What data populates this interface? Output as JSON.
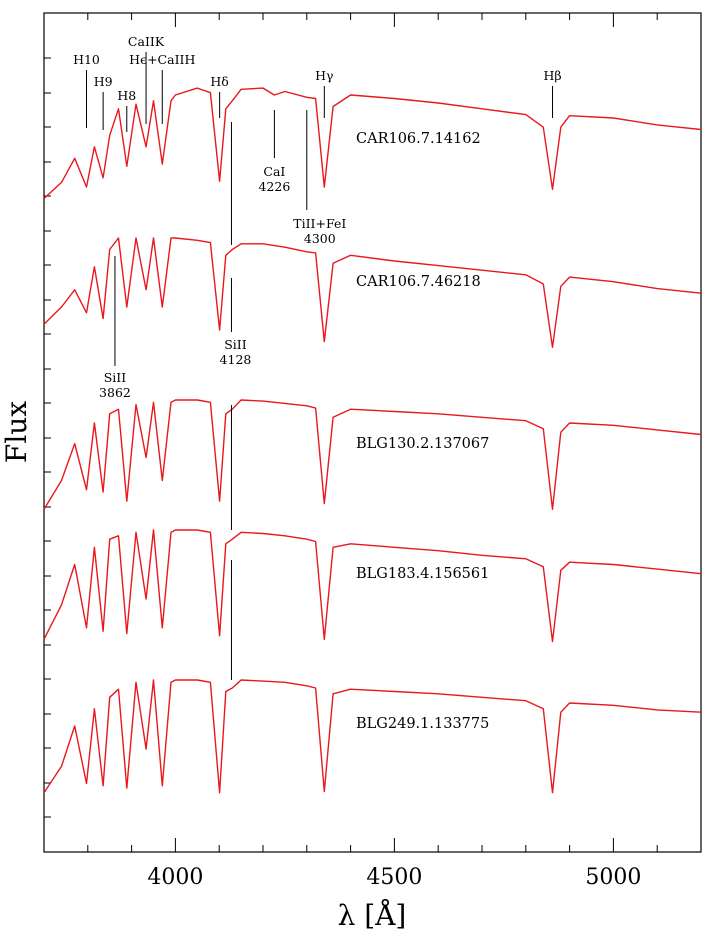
{
  "chart_data": {
    "type": "line",
    "xlabel": "λ [Å]",
    "ylabel": "Flux",
    "xlim": [
      3700,
      5200
    ],
    "x_ticks": [
      4000,
      4500,
      5000
    ],
    "line_color": "#e8181c",
    "series": [
      {
        "name": "CAR106.7.14162",
        "x": [
          3700,
          3740,
          3770,
          3797,
          3815,
          3835,
          3850,
          3870,
          3889,
          3910,
          3933,
          3950,
          3970,
          3990,
          4000,
          4050,
          4080,
          4101,
          4115,
          4130,
          4150,
          4200,
          4226,
          4250,
          4300,
          4320,
          4340,
          4360,
          4400,
          4500,
          4600,
          4700,
          4800,
          4840,
          4861,
          4880,
          4900,
          5000,
          5100,
          5200
        ],
        "y": [
          0.1,
          0.24,
          0.45,
          0.2,
          0.55,
          0.28,
          0.65,
          0.88,
          0.38,
          0.92,
          0.55,
          0.95,
          0.4,
          0.95,
          1.0,
          1.06,
          1.02,
          0.25,
          0.88,
          0.95,
          1.05,
          1.06,
          1.0,
          1.03,
          0.98,
          0.97,
          0.2,
          0.9,
          1.0,
          0.97,
          0.93,
          0.88,
          0.83,
          0.72,
          0.18,
          0.72,
          0.82,
          0.8,
          0.74,
          0.7
        ]
      },
      {
        "name": "CAR106.7.46218",
        "x": [
          3700,
          3740,
          3770,
          3797,
          3815,
          3835,
          3850,
          3870,
          3889,
          3910,
          3933,
          3950,
          3970,
          3990,
          4000,
          4050,
          4080,
          4101,
          4115,
          4130,
          4150,
          4200,
          4250,
          4300,
          4320,
          4340,
          4360,
          4400,
          4500,
          4600,
          4700,
          4800,
          4840,
          4861,
          4880,
          4900,
          5000,
          5100,
          5200
        ],
        "y": [
          0.25,
          0.4,
          0.55,
          0.35,
          0.75,
          0.3,
          0.9,
          1.0,
          0.4,
          1.0,
          0.55,
          1.0,
          0.4,
          1.0,
          1.0,
          0.98,
          0.96,
          0.2,
          0.85,
          0.9,
          0.95,
          0.95,
          0.92,
          0.88,
          0.87,
          0.1,
          0.78,
          0.85,
          0.8,
          0.76,
          0.72,
          0.68,
          0.6,
          0.05,
          0.58,
          0.66,
          0.62,
          0.56,
          0.52
        ]
      },
      {
        "name": "BLG130.2.137067",
        "x": [
          3700,
          3740,
          3770,
          3797,
          3815,
          3835,
          3850,
          3870,
          3889,
          3910,
          3933,
          3950,
          3970,
          3990,
          4000,
          4050,
          4080,
          4101,
          4115,
          4130,
          4150,
          4200,
          4250,
          4300,
          4320,
          4340,
          4360,
          4400,
          4500,
          4600,
          4700,
          4800,
          4840,
          4861,
          4880,
          4900,
          5000,
          5100,
          5200
        ],
        "y": [
          0.05,
          0.3,
          0.62,
          0.22,
          0.8,
          0.2,
          0.88,
          0.92,
          0.12,
          0.96,
          0.5,
          0.98,
          0.3,
          0.98,
          1.0,
          1.0,
          0.98,
          0.12,
          0.88,
          0.92,
          1.0,
          0.99,
          0.97,
          0.95,
          0.93,
          0.1,
          0.85,
          0.92,
          0.9,
          0.88,
          0.85,
          0.82,
          0.75,
          0.05,
          0.72,
          0.8,
          0.78,
          0.74,
          0.7
        ]
      },
      {
        "name": "BLG183.4.156561",
        "x": [
          3700,
          3740,
          3770,
          3797,
          3815,
          3835,
          3850,
          3870,
          3889,
          3910,
          3933,
          3950,
          3970,
          3990,
          4000,
          4050,
          4080,
          4101,
          4115,
          4130,
          4150,
          4200,
          4250,
          4300,
          4320,
          4340,
          4360,
          4400,
          4500,
          4600,
          4700,
          4800,
          4840,
          4861,
          4880,
          4900,
          5000,
          5100,
          5200
        ],
        "y": [
          0.05,
          0.35,
          0.7,
          0.15,
          0.85,
          0.12,
          0.92,
          0.95,
          0.1,
          0.98,
          0.4,
          1.0,
          0.15,
          0.98,
          1.0,
          1.0,
          0.98,
          0.08,
          0.88,
          0.92,
          0.98,
          0.97,
          0.95,
          0.92,
          0.9,
          0.05,
          0.85,
          0.88,
          0.85,
          0.82,
          0.78,
          0.75,
          0.68,
          0.03,
          0.65,
          0.72,
          0.7,
          0.66,
          0.62
        ]
      },
      {
        "name": "BLG249.1.133775",
        "x": [
          3700,
          3740,
          3770,
          3797,
          3815,
          3835,
          3850,
          3870,
          3889,
          3910,
          3933,
          3950,
          3970,
          3990,
          4000,
          4050,
          4080,
          4101,
          4115,
          4130,
          4150,
          4200,
          4250,
          4300,
          4320,
          4340,
          4360,
          4400,
          4500,
          4600,
          4700,
          4800,
          4840,
          4861,
          4880,
          4900,
          5000,
          5100,
          5200
        ],
        "y": [
          0.02,
          0.25,
          0.6,
          0.1,
          0.75,
          0.08,
          0.85,
          0.92,
          0.06,
          0.98,
          0.4,
          1.0,
          0.08,
          0.98,
          1.0,
          1.0,
          0.98,
          0.02,
          0.9,
          0.93,
          1.0,
          0.99,
          0.98,
          0.95,
          0.93,
          0.03,
          0.88,
          0.92,
          0.9,
          0.88,
          0.85,
          0.82,
          0.75,
          0.02,
          0.72,
          0.8,
          0.78,
          0.74,
          0.72
        ]
      }
    ],
    "annotations": [
      {
        "text": "H10",
        "x": 3797
      },
      {
        "text": "H9",
        "x": 3835
      },
      {
        "text": "H8",
        "x": 3889
      },
      {
        "text": "CaIIK",
        "x": 3933
      },
      {
        "text": "Hϵ+CaIIH",
        "x": 3970
      },
      {
        "text": "Hδ",
        "x": 4101
      },
      {
        "text": "Hγ",
        "x": 4340
      },
      {
        "text": "Hβ",
        "x": 4861
      },
      {
        "text": "CaI",
        "text2": "4226",
        "x": 4226
      },
      {
        "text": "TiII+FeI",
        "text2": "4300",
        "x": 4300
      },
      {
        "text": "SiII",
        "text2": "4128",
        "x": 4128
      },
      {
        "text": "SiII",
        "text2": "3862",
        "x": 3862
      }
    ]
  }
}
